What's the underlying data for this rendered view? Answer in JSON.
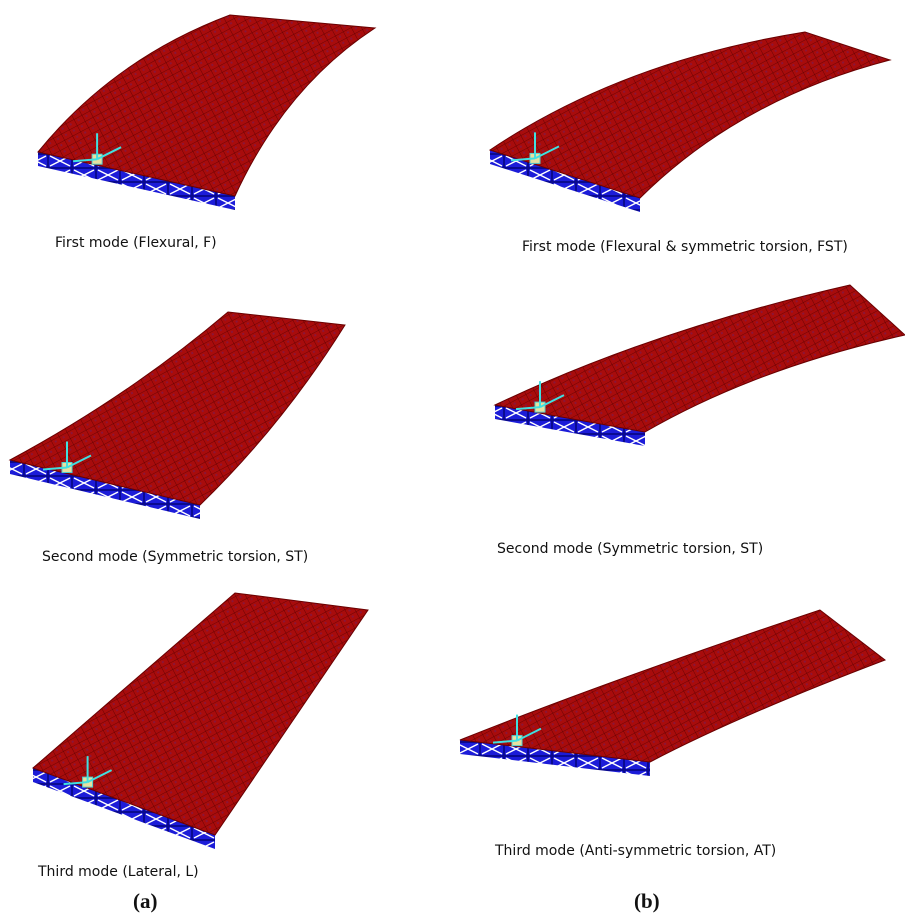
{
  "panels": {
    "a": {
      "label": "(a)",
      "captions": [
        "First mode (Flexural, F)",
        "Second mode (Symmetric torsion, ST)",
        "Third mode (Lateral, L)"
      ]
    },
    "b": {
      "label": "(b)",
      "captions": [
        "First mode (Flexural & symmetric torsion, FST)",
        "Second mode (Symmetric torsion, ST)",
        "Third mode (Anti-symmetric torsion, AT)"
      ]
    }
  }
}
